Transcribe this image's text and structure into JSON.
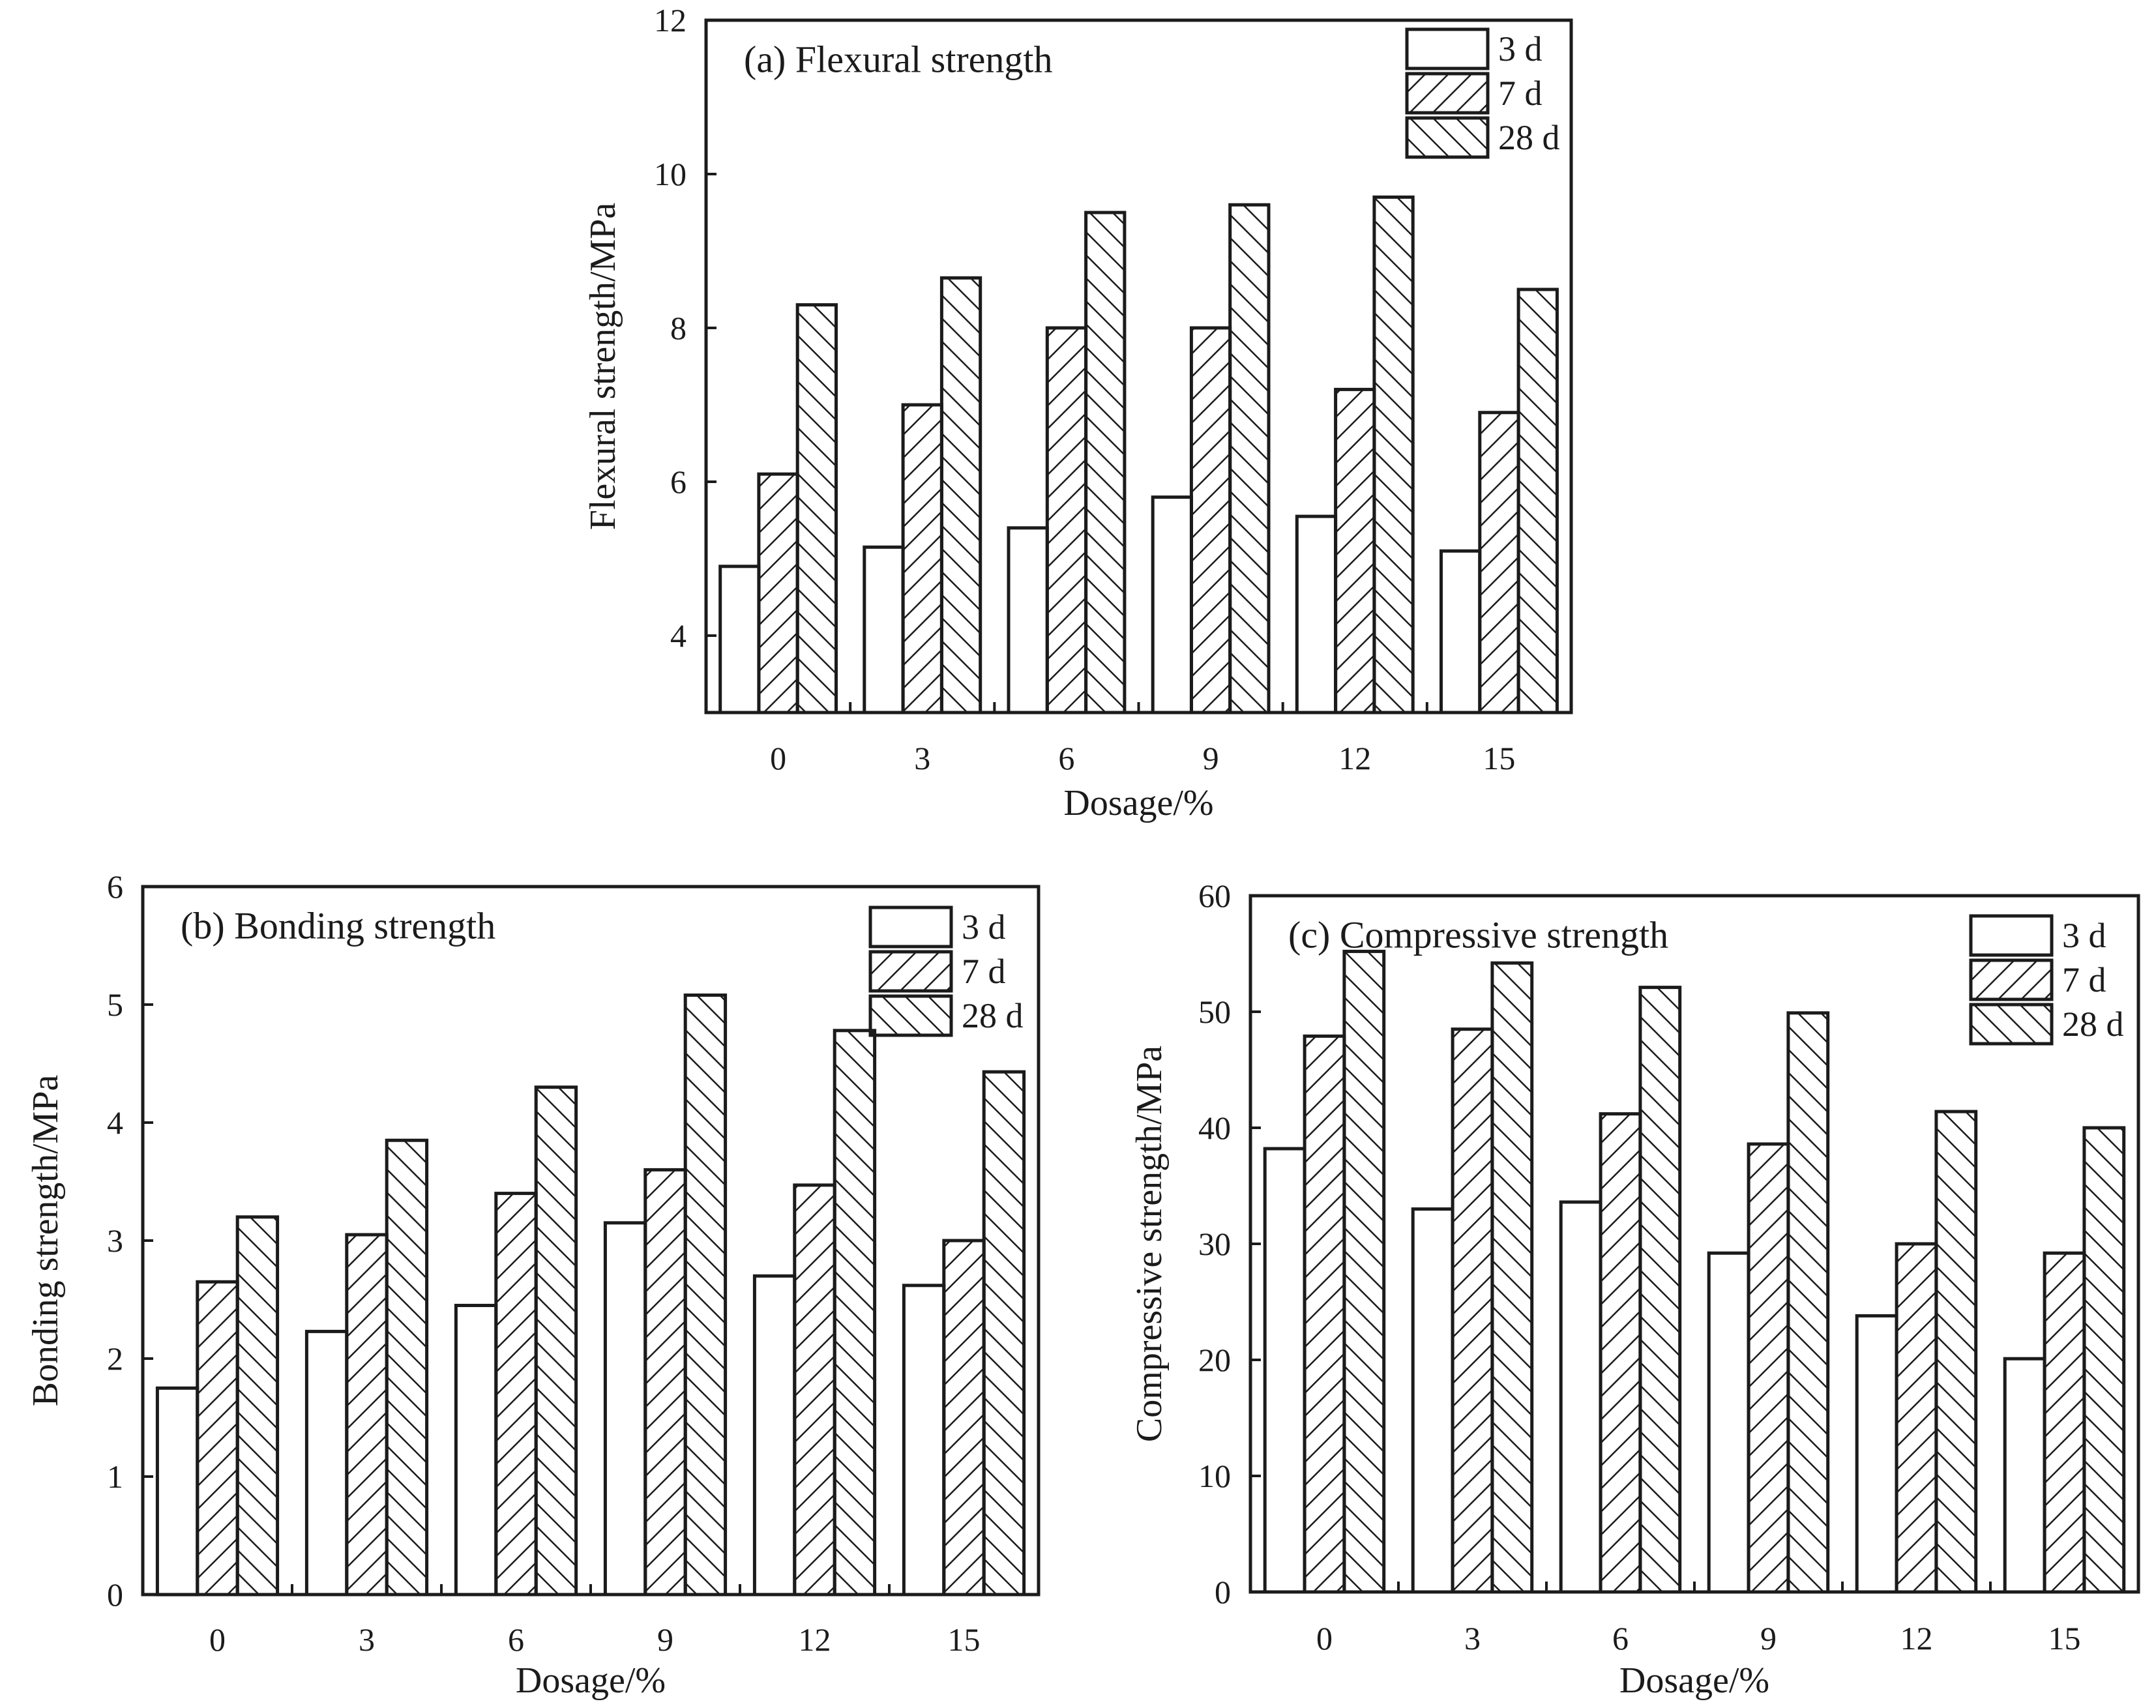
{
  "figure": {
    "background": "#ffffff",
    "ink": "#1b1b1b",
    "description": "Three-panel hatched bar chart of mortar strength vs dosage"
  },
  "chart_data": [
    {
      "type": "bar",
      "panel": "a",
      "title": "(a) Flexural strength",
      "xlabel": "Dosage/%",
      "ylabel": "Flexural strength/MPa",
      "categories": [
        "0",
        "3",
        "6",
        "9",
        "12",
        "15"
      ],
      "legend": [
        "3 d",
        "7 d",
        "28 d"
      ],
      "legend_position": "top-right-inside",
      "grid": false,
      "ylim": [
        3,
        12
      ],
      "yticks": [
        4,
        6,
        8,
        10,
        12
      ],
      "bar_fills": [
        "white",
        "hatch-forward-diagonal",
        "hatch-backward-diagonal"
      ],
      "series": [
        {
          "name": "3 d",
          "values": [
            4.9,
            5.15,
            5.4,
            5.8,
            5.55,
            5.1
          ]
        },
        {
          "name": "7 d",
          "values": [
            6.1,
            7.0,
            8.0,
            8.0,
            7.2,
            6.9
          ]
        },
        {
          "name": "28 d",
          "values": [
            8.3,
            8.65,
            9.5,
            9.6,
            9.7,
            8.5
          ]
        }
      ]
    },
    {
      "type": "bar",
      "panel": "b",
      "title": "(b) Bonding strength",
      "xlabel": "Dosage/%",
      "ylabel": "Bonding strength/MPa",
      "categories": [
        "0",
        "3",
        "6",
        "9",
        "12",
        "15"
      ],
      "legend": [
        "3 d",
        "7 d",
        "28 d"
      ],
      "legend_position": "top-right-inside",
      "grid": false,
      "ylim": [
        0,
        6
      ],
      "yticks": [
        0,
        1,
        2,
        3,
        4,
        5,
        6
      ],
      "bar_fills": [
        "white",
        "hatch-forward-diagonal",
        "hatch-backward-diagonal"
      ],
      "series": [
        {
          "name": "3 d",
          "values": [
            1.75,
            2.23,
            2.45,
            3.15,
            2.7,
            2.62
          ]
        },
        {
          "name": "7 d",
          "values": [
            2.65,
            3.05,
            3.4,
            3.6,
            3.47,
            3.0
          ]
        },
        {
          "name": "28 d",
          "values": [
            3.2,
            3.85,
            4.3,
            5.08,
            4.78,
            4.43
          ]
        }
      ]
    },
    {
      "type": "bar",
      "panel": "c",
      "title": "(c) Compressive strength",
      "xlabel": "Dosage/%",
      "ylabel": "Compressive strength/MPa",
      "categories": [
        "0",
        "3",
        "6",
        "9",
        "12",
        "15"
      ],
      "legend": [
        "3 d",
        "7 d",
        "28 d"
      ],
      "legend_position": "top-right-inside",
      "grid": false,
      "ylim": [
        0,
        60
      ],
      "yticks": [
        0,
        10,
        20,
        30,
        40,
        50,
        60
      ],
      "bar_fills": [
        "white",
        "hatch-forward-diagonal",
        "hatch-backward-diagonal"
      ],
      "series": [
        {
          "name": "3 d",
          "values": [
            38.2,
            33.0,
            33.6,
            29.2,
            23.8,
            20.1
          ]
        },
        {
          "name": "7 d",
          "values": [
            47.9,
            48.5,
            41.2,
            38.6,
            30.0,
            29.2
          ]
        },
        {
          "name": "28 d",
          "values": [
            55.2,
            54.2,
            52.1,
            49.9,
            41.4,
            40.0
          ]
        }
      ]
    }
  ]
}
